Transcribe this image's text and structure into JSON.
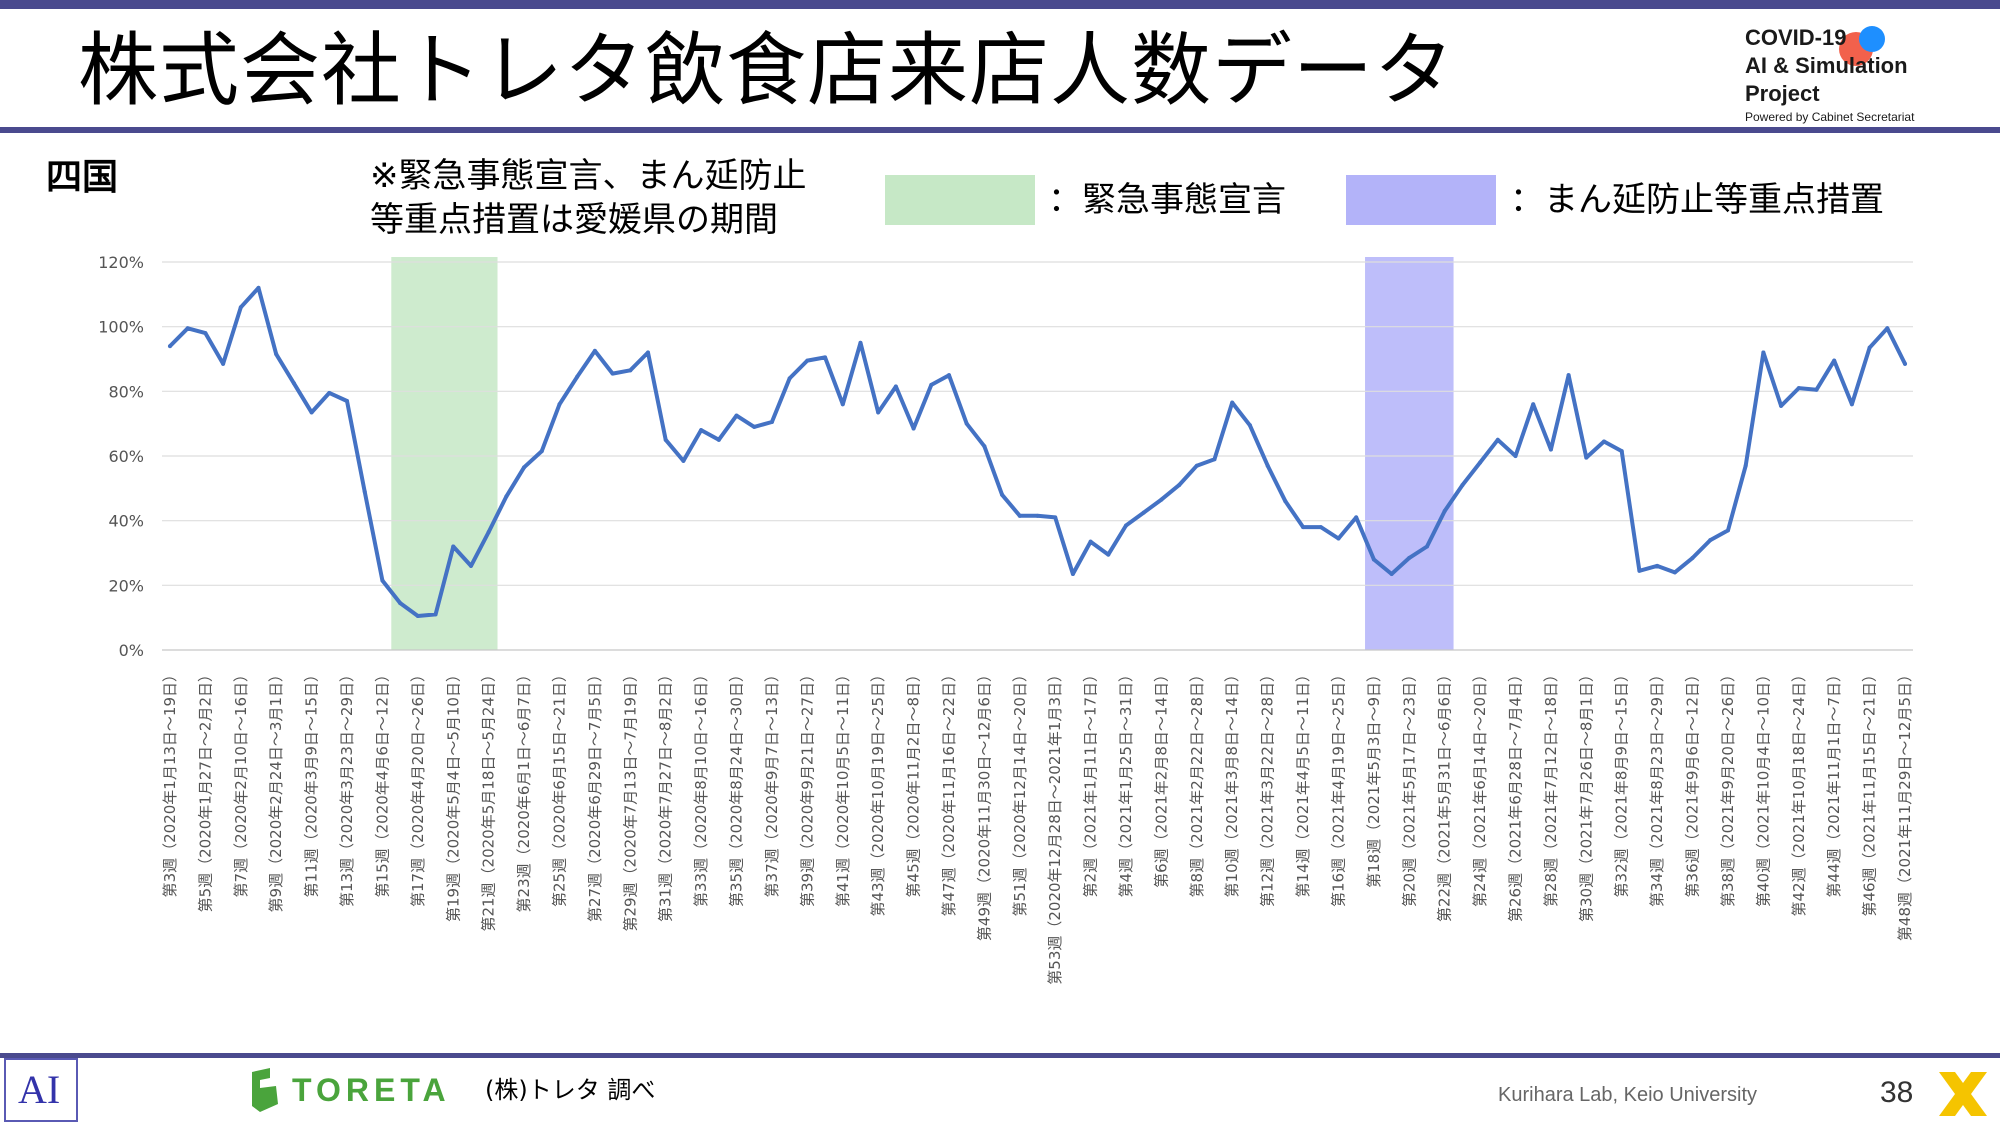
{
  "header": {
    "title": "株式会社トレタ飲食店来店人数データ",
    "logo": {
      "line1": "COVID-19",
      "line2": "AI & Simulation Project",
      "line3": "Powered by Cabinet Secretariat",
      "colors": {
        "red_dot": "#f2614c",
        "blue_dot": "#1e8fff"
      }
    }
  },
  "region": "四国",
  "note": {
    "line1": "※緊急事態宣言、まん延防止",
    "line2": "等重点措置は愛媛県の期間"
  },
  "legend": {
    "emergency_label": "：緊急事態宣言",
    "emergency_color": "#c6e8c6",
    "priority_label": "：まん延防止等重点措置",
    "priority_color": "#b3b3f9"
  },
  "chart_data": {
    "type": "line",
    "ylim": [
      0,
      120
    ],
    "ytick_labels": [
      "0%",
      "20%",
      "40%",
      "60%",
      "80%",
      "100%",
      "120%"
    ],
    "grid": true,
    "line_color": "#4472c4",
    "x_tick_labels": [
      "第3週（2020年1月13日～19日）",
      "第5週（2020年1月27日～2月2日）",
      "第7週（2020年2月10日～16日）",
      "第9週（2020年2月24日～3月1日）",
      "第11週（2020年3月9日～15日）",
      "第13週（2020年3月23日～29日）",
      "第15週（2020年4月6日～12日）",
      "第17週（2020年4月20日～26日）",
      "第19週（2020年5月4日～5月10日）",
      "第21週（2020年5月18日～5月24日）",
      "第23週（2020年6月1日～6月7日）",
      "第25週（2020年6月15日～21日）",
      "第27週（2020年6月29日～7月5日）",
      "第29週（2020年7月13日～7月19日）",
      "第31週（2020年7月27日～8月2日）",
      "第33週（2020年8月10日～16日）",
      "第35週（2020年8月24日～30日）",
      "第37週（2020年9月7日～13日）",
      "第39週（2020年9月21日～27日）",
      "第41週（2020年10月5日～11日）",
      "第43週（2020年10月19日～25日）",
      "第45週（2020年11月2日～8日）",
      "第47週（2020年11月16日～22日）",
      "第49週（2020年11月30日～12月6日）",
      "第51週（2020年12月14日～20日）",
      "第53週（2020年12月28日～2021年1月3日）",
      "第2週（2021年1月11日～17日）",
      "第4週（2021年1月25日～31日）",
      "第6週（2021年2月8日～14日）",
      "第8週（2021年2月22日～28日）",
      "第10週（2021年3月8日～14日）",
      "第12週（2021年3月22日～28日）",
      "第14週（2021年4月5日～11日）",
      "第16週（2021年4月19日～25日）",
      "第18週（2021年5月3日～9日）",
      "第20週（2021年5月17日～23日）",
      "第22週（2021年5月31日～6月6日）",
      "第24週（2021年6月14日～20日）",
      "第26週（2021年6月28日～7月4日）",
      "第28週（2021年7月12日～18日）",
      "第30週（2021年7月26日～8月1日）",
      "第32週（2021年8月9日～15日）",
      "第34週（2021年8月23日～29日）",
      "第36週（2021年9月6日～12日）",
      "第38週（2021年9月20日～26日）",
      "第40週（2021年10月4日～10日）",
      "第42週（2021年10月18日～24日）",
      "第44週（2021年11月1日～7日）",
      "第46週（2021年11月15日～21日）",
      "第48週（2021年11月29日～12月5日）"
    ],
    "values": [
      94,
      99.5,
      98,
      88.5,
      106,
      112,
      91.5,
      82.5,
      73.5,
      79.5,
      77,
      49,
      21.5,
      14.5,
      10.5,
      11,
      32,
      26,
      36.5,
      47.5,
      56.5,
      61.5,
      76,
      84.5,
      92.5,
      85.5,
      86.5,
      92,
      65,
      58.5,
      68,
      65,
      72.5,
      69,
      70.5,
      84,
      89.5,
      90.5,
      76,
      95,
      73.5,
      81.5,
      68.5,
      82,
      85,
      70,
      63,
      48,
      41.5,
      41.5,
      41,
      23.5,
      33.5,
      29.5,
      38.5,
      42.5,
      46.5,
      51,
      57,
      59,
      76.5,
      69.5,
      57,
      46,
      38,
      38,
      34.5,
      41,
      28,
      23.5,
      28.5,
      32,
      43,
      51,
      58,
      65,
      60,
      76,
      62,
      85,
      59.5,
      64.5,
      61.5,
      24.5,
      26,
      24,
      28.5,
      34,
      37,
      57,
      92,
      75.5,
      81,
      80.5,
      89.5,
      76,
      93.5,
      99.5,
      88.5
    ],
    "emergency_period": {
      "start_index": 13,
      "end_index": 18
    },
    "priority_period": {
      "start_index": 68,
      "end_index": 72
    }
  },
  "footer": {
    "ai_mark": "AI",
    "brand": "TORETA",
    "brand_color": "#4aa43c",
    "source": "(株)トレタ 調べ",
    "credit": "Kurihara Lab, Keio University",
    "page": "38"
  }
}
